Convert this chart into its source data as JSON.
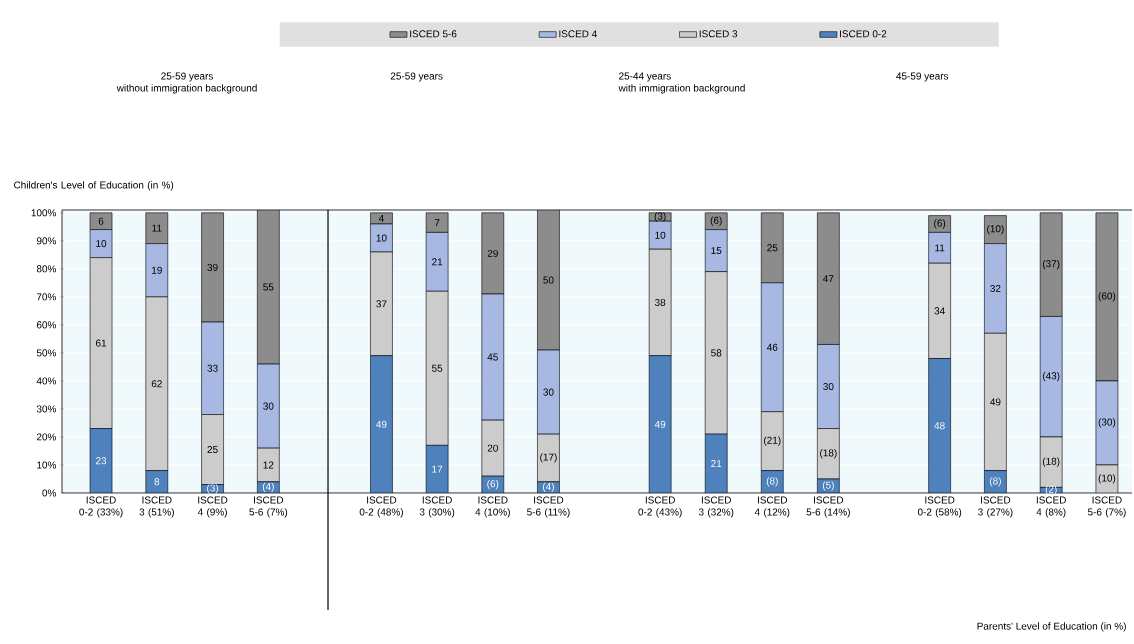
{
  "chart_data": [
    {
      "type": "bar",
      "stacked": true,
      "title": "25-59 years",
      "subtitle": "without immigration background",
      "ylabel": "Children's Level of Education (in %)",
      "legend": "top",
      "grid": "y",
      "categories": [
        "ISCED 0-2 (33%)",
        "ISCED 3 (51%)",
        "ISCED 4 (9%)",
        "ISCED 5-6 (7%)"
      ],
      "ylim": [
        0,
        101
      ],
      "yticks": [
        {
          "value": 0,
          "label": "0%"
        },
        {
          "value": 10,
          "label": "10%"
        },
        {
          "value": 20,
          "label": "20%"
        },
        {
          "value": 30,
          "label": "30%"
        },
        {
          "value": 40,
          "label": "40%"
        },
        {
          "value": 50,
          "label": "50%"
        },
        {
          "value": 60,
          "label": "60%"
        },
        {
          "value": 70,
          "label": "70%"
        },
        {
          "value": 80,
          "label": "80%"
        },
        {
          "value": 90,
          "label": "90%"
        },
        {
          "value": 100,
          "label": "100%"
        }
      ],
      "series": [
        {
          "name": "ISCED 0-2",
          "color": "#4f81bd",
          "values": [
            23,
            8,
            3,
            4
          ],
          "value_labels": [
            "23",
            "8",
            "(3)",
            "(4)"
          ]
        },
        {
          "name": "ISCED 3",
          "color": "#cccccc",
          "values": [
            61,
            62,
            25,
            12
          ],
          "value_labels": [
            "61",
            "62",
            "25",
            "12"
          ]
        },
        {
          "name": "ISCED 4",
          "color": "#a7b9e3",
          "values": [
            10,
            19,
            33,
            30
          ],
          "value_labels": [
            "10",
            "19",
            "33",
            "30"
          ]
        },
        {
          "name": "ISCED 5-6",
          "color": "#8c8c8c",
          "values": [
            6,
            11,
            39,
            55
          ],
          "value_labels": [
            "6",
            "11",
            "39",
            "55"
          ]
        }
      ]
    },
    {
      "type": "bar",
      "stacked": true,
      "title": "25-59 years",
      "grid": "y",
      "tick_labels": "x",
      "categories": [
        "ISCED 0-2 (48%)",
        "ISCED 3 (30%)",
        "ISCED 4 (10%)",
        "ISCED 5-6 (11%)"
      ],
      "ylim": [
        0,
        101
      ],
      "yticks": [
        0,
        10,
        20,
        30,
        40,
        50,
        60,
        70,
        80,
        90,
        100
      ],
      "series": [
        {
          "color": "#4f81bd",
          "values": [
            49,
            17,
            6,
            4
          ],
          "value_labels": [
            "49",
            "17",
            "(6)",
            "(4)"
          ]
        },
        {
          "color": "#cccccc",
          "values": [
            37,
            55,
            20,
            17
          ],
          "value_labels": [
            "37",
            "55",
            "20",
            "(17)"
          ]
        },
        {
          "color": "#a7b9e3",
          "values": [
            10,
            21,
            45,
            30
          ],
          "value_labels": [
            "10",
            "21",
            "45",
            "30"
          ]
        },
        {
          "color": "#8c8c8c",
          "values": [
            4,
            7,
            29,
            50
          ],
          "value_labels": [
            "4",
            "7",
            "29",
            "50"
          ]
        }
      ]
    },
    {
      "type": "bar",
      "stacked": true,
      "title": "25-44 years",
      "subtitle": "with immigration background",
      "grid": "y",
      "tick_labels": "x",
      "categories": [
        "ISCED 0-2 (43%)",
        "ISCED 3 (32%)",
        "ISCED 4 (12%)",
        "ISCED 5-6 (14%)"
      ],
      "ylim": [
        0,
        101
      ],
      "yticks": [
        0,
        10,
        20,
        30,
        40,
        50,
        60,
        70,
        80,
        90,
        100
      ],
      "series": [
        {
          "color": "#4f81bd",
          "values": [
            49,
            21,
            8,
            5
          ],
          "value_labels": [
            "49",
            "21",
            "(8)",
            "(5)"
          ]
        },
        {
          "color": "#cccccc",
          "values": [
            38,
            58,
            21,
            18
          ],
          "value_labels": [
            "38",
            "58",
            "(21)",
            "(18)"
          ]
        },
        {
          "color": "#a7b9e3",
          "values": [
            10,
            15,
            46,
            30
          ],
          "value_labels": [
            "10",
            "15",
            "46",
            "30"
          ]
        },
        {
          "color": "#8c8c8c",
          "values": [
            3,
            6,
            25,
            47
          ],
          "value_labels": [
            "(3)",
            "(6)",
            "25",
            "47"
          ]
        }
      ]
    },
    {
      "type": "bar",
      "stacked": true,
      "title": "45-59 years",
      "xlabel": "Parents' Level of Education (in %)",
      "grid": "y",
      "tick_labels": "x",
      "categories": [
        "ISCED 0-2 (58%)",
        "ISCED 3 (27%)",
        "ISCED 4 (8%)",
        "ISCED 5-6 (7%)"
      ],
      "ylim": [
        0,
        101
      ],
      "yticks": [
        0,
        10,
        20,
        30,
        40,
        50,
        60,
        70,
        80,
        90,
        100
      ],
      "series": [
        {
          "color": "#4f81bd",
          "values": [
            48,
            8,
            2,
            0
          ],
          "value_labels": [
            "48",
            "(8)",
            "(2)",
            null
          ]
        },
        {
          "color": "#cccccc",
          "values": [
            34,
            49,
            18,
            10
          ],
          "value_labels": [
            "34",
            "49",
            "(18)",
            "(10)"
          ]
        },
        {
          "color": "#a7b9e3",
          "values": [
            11,
            32,
            43,
            30
          ],
          "value_labels": [
            "11",
            "32",
            "(43)",
            "(30)"
          ]
        },
        {
          "color": "#8c8c8c",
          "values": [
            6,
            10,
            37,
            60
          ],
          "value_labels": [
            "(6)",
            "(10)",
            "(37)",
            "(60)"
          ]
        }
      ]
    }
  ]
}
